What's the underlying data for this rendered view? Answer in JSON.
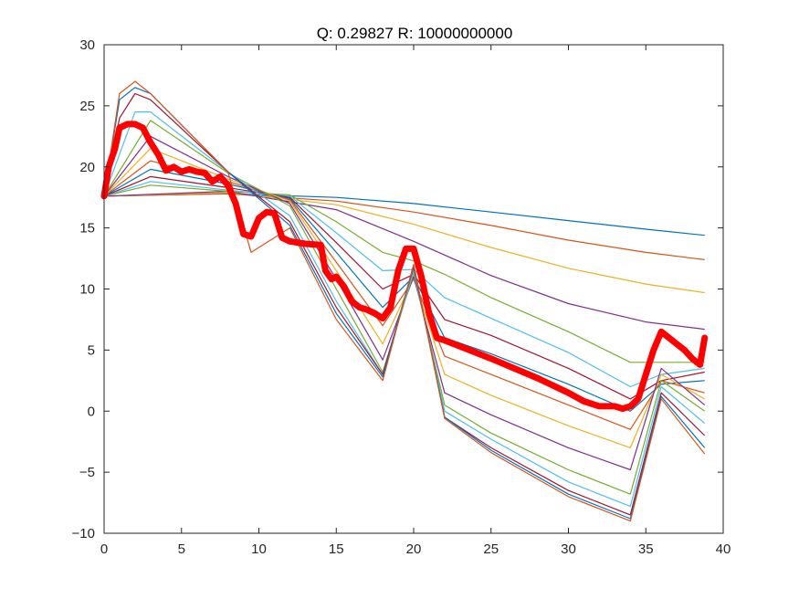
{
  "chart_data": {
    "type": "line",
    "title": "Q: 0.29827  R: 10000000000",
    "xlabel": "",
    "ylabel": "",
    "xlim": [
      0,
      40
    ],
    "ylim": [
      -10,
      30
    ],
    "xticks": [
      0,
      5,
      10,
      15,
      20,
      25,
      30,
      35,
      40
    ],
    "yticks": [
      -10,
      -5,
      0,
      5,
      10,
      15,
      20,
      25,
      30
    ],
    "xtick_labels": [
      "0",
      "5",
      "10",
      "15",
      "20",
      "25",
      "30",
      "35",
      "40"
    ],
    "ytick_labels": [
      "−10",
      "−5",
      "0",
      "5",
      "10",
      "15",
      "20",
      "25",
      "30"
    ],
    "grid": false,
    "legend": "none",
    "colors": {
      "highlight": "#ff0000",
      "palette": [
        "#0072bd",
        "#d95319",
        "#edb120",
        "#7e2f8e",
        "#77ac30",
        "#4dbeee",
        "#a2142f"
      ]
    },
    "highlight_series": {
      "x": [
        0,
        0.3,
        0.7,
        1.0,
        1.5,
        2.0,
        2.5,
        3.0,
        3.5,
        4.0,
        4.5,
        5.0,
        5.5,
        6.0,
        6.5,
        7.0,
        7.5,
        8.0,
        8.5,
        9.0,
        9.5,
        10.0,
        10.5,
        11.0,
        11.5,
        12.0,
        12.5,
        13.0,
        14.0,
        14.3,
        14.7,
        15.0,
        15.5,
        16.0,
        16.5,
        17.0,
        17.5,
        18.0,
        18.5,
        19.0,
        19.5,
        20.0,
        20.5,
        21.0,
        21.5,
        22.0,
        25.0,
        28.0,
        30.0,
        31.0,
        32.0,
        33.0,
        33.5,
        34.0,
        34.5,
        35.0,
        35.5,
        36.0,
        36.5,
        37.0,
        37.5,
        38.0,
        38.5,
        38.8
      ],
      "y": [
        17.6,
        20.0,
        21.5,
        23.2,
        23.5,
        23.5,
        23.2,
        22.0,
        21.0,
        19.7,
        20.0,
        19.6,
        19.8,
        19.6,
        19.5,
        18.8,
        19.2,
        18.5,
        17.0,
        14.5,
        14.3,
        15.8,
        16.3,
        16.2,
        14.2,
        13.9,
        13.8,
        13.7,
        13.6,
        11.5,
        10.8,
        11.0,
        10.2,
        9.0,
        8.5,
        8.3,
        8.0,
        7.6,
        8.5,
        11.5,
        13.3,
        13.3,
        11.0,
        8.0,
        6.0,
        5.8,
        4.3,
        2.7,
        1.5,
        0.8,
        0.4,
        0.4,
        0.2,
        0.4,
        1.0,
        3.0,
        5.0,
        6.5,
        6.0,
        5.5,
        5.0,
        4.3,
        3.8,
        6.0
      ]
    },
    "series": [
      {
        "x": [
          0,
          8,
          15,
          20,
          25,
          30,
          35,
          38.8
        ],
        "y": [
          17.6,
          17.8,
          17.5,
          17.0,
          16.3,
          15.6,
          14.9,
          14.4
        ]
      },
      {
        "x": [
          0,
          8,
          15,
          20,
          25,
          30,
          35,
          38.8
        ],
        "y": [
          17.6,
          17.8,
          17.2,
          16.3,
          15.2,
          14.0,
          13.0,
          12.4
        ]
      },
      {
        "x": [
          0,
          8,
          15,
          20,
          25,
          30,
          35,
          38.8
        ],
        "y": [
          17.6,
          17.9,
          16.9,
          15.3,
          13.4,
          11.7,
          10.4,
          9.7
        ]
      },
      {
        "x": [
          0,
          8,
          15,
          20,
          25,
          30,
          35,
          38.8
        ],
        "y": [
          17.6,
          18.0,
          16.5,
          13.9,
          11.1,
          8.8,
          7.3,
          6.7
        ]
      },
      {
        "x": [
          0,
          3,
          8,
          12,
          15,
          18,
          20,
          22,
          25,
          30,
          34,
          36,
          38.8
        ],
        "y": [
          17.6,
          18.5,
          18.0,
          17.7,
          15.5,
          13.0,
          12.3,
          11.2,
          9.3,
          6.5,
          4.0,
          4.0,
          4.0
        ]
      },
      {
        "x": [
          0,
          3,
          8,
          12,
          15,
          18,
          20,
          22,
          25,
          30,
          34,
          36,
          38.8
        ],
        "y": [
          17.6,
          18.8,
          18.1,
          17.6,
          14.6,
          11.5,
          11.6,
          9.3,
          7.6,
          4.8,
          2.0,
          3.0,
          3.5
        ]
      },
      {
        "x": [
          0,
          3,
          8,
          12,
          15,
          18,
          20,
          22,
          25,
          30,
          34,
          36,
          38.8
        ],
        "y": [
          17.6,
          19.2,
          18.3,
          17.5,
          13.8,
          10.0,
          11.2,
          7.5,
          6.2,
          3.5,
          1.0,
          2.5,
          3.2
        ]
      },
      {
        "x": [
          0,
          3,
          8,
          12,
          15,
          18,
          20,
          22,
          25,
          30,
          34,
          36,
          38.8
        ],
        "y": [
          17.6,
          19.8,
          18.6,
          17.4,
          13.0,
          8.5,
          11.0,
          6.0,
          4.7,
          2.2,
          0.0,
          2.2,
          2.5
        ]
      },
      {
        "x": [
          0,
          3,
          8,
          12,
          15,
          18,
          20,
          22,
          25,
          30,
          34,
          36,
          38.8
        ],
        "y": [
          17.6,
          20.5,
          18.8,
          17.3,
          12.2,
          7.0,
          10.8,
          4.5,
          3.0,
          0.5,
          -1.5,
          2.5,
          1.5
        ]
      },
      {
        "x": [
          0,
          3,
          8,
          12,
          15,
          18,
          20,
          22,
          25,
          30,
          34,
          36,
          38.8
        ],
        "y": [
          17.6,
          21.5,
          19.0,
          17.2,
          11.5,
          5.5,
          10.9,
          3.0,
          1.3,
          -1.2,
          -3.0,
          3.0,
          1.0
        ]
      },
      {
        "x": [
          0,
          3,
          8,
          12,
          15,
          18,
          20,
          22,
          25,
          30,
          34,
          36,
          38.8
        ],
        "y": [
          17.6,
          22.5,
          19.2,
          17.0,
          10.8,
          4.2,
          11.0,
          1.5,
          -0.3,
          -3.0,
          -4.8,
          3.5,
          0.5
        ]
      },
      {
        "x": [
          0,
          3,
          8,
          12,
          15,
          18,
          20,
          22,
          25,
          30,
          34,
          36,
          38.8
        ],
        "y": [
          17.6,
          23.8,
          19.5,
          16.8,
          10.0,
          3.2,
          11.3,
          0.5,
          -1.8,
          -4.8,
          -6.8,
          2.5,
          0.0
        ]
      },
      {
        "x": [
          0,
          2,
          3,
          8,
          12,
          15,
          18,
          20,
          22,
          25,
          30,
          34,
          36,
          38.8
        ],
        "y": [
          17.6,
          24.5,
          24.5,
          19.6,
          16.0,
          9.0,
          3.0,
          11.5,
          0.0,
          -2.3,
          -5.8,
          -7.8,
          2.0,
          -1.0
        ]
      },
      {
        "x": [
          0,
          1,
          2,
          3,
          8,
          12,
          15,
          18,
          20,
          22,
          25,
          30,
          34,
          36,
          38.8
        ],
        "y": [
          17.6,
          24.0,
          26.0,
          25.5,
          19.6,
          15.5,
          8.5,
          3.0,
          11.8,
          -0.5,
          -3.0,
          -6.5,
          -8.5,
          1.5,
          -2.0
        ]
      },
      {
        "x": [
          0,
          1,
          2,
          3,
          8,
          12,
          15,
          18,
          20,
          22,
          25,
          30,
          34,
          36,
          38.8
        ],
        "y": [
          17.6,
          25.5,
          26.5,
          26.0,
          19.6,
          15.2,
          8.0,
          2.8,
          12.0,
          -0.5,
          -3.2,
          -6.8,
          -8.8,
          1.2,
          -3.0
        ]
      },
      {
        "x": [
          0,
          1,
          2,
          3,
          8,
          9.5,
          12,
          15,
          18,
          20,
          22,
          25,
          30,
          34,
          36,
          38.8
        ],
        "y": [
          17.6,
          26.0,
          27.0,
          26.0,
          19.6,
          13.0,
          15.0,
          7.5,
          2.5,
          12.0,
          -0.6,
          -3.4,
          -7.0,
          -9.0,
          1.0,
          -3.5
        ]
      }
    ]
  }
}
